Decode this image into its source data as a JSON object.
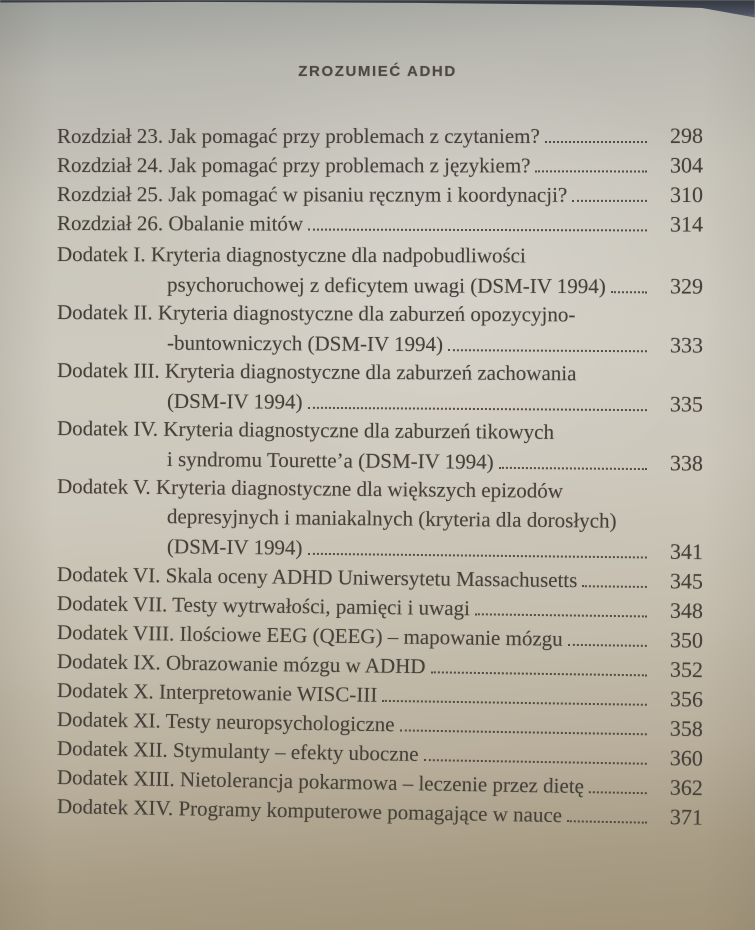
{
  "page": {
    "running_header": "ZROZUMIEĆ ADHD"
  },
  "toc": {
    "entries": [
      {
        "lines": [
          "Rozdział 23. Jak pomagać przy problemach z czytaniem?"
        ],
        "page": "298"
      },
      {
        "lines": [
          "Rozdział 24. Jak pomagać przy problemach z językiem?"
        ],
        "page": "304"
      },
      {
        "lines": [
          "Rozdział 25. Jak pomagać w pisaniu ręcznym i koordynacji?"
        ],
        "page": "310"
      },
      {
        "lines": [
          "Rozdział 26. Obalanie mitów"
        ],
        "page": "314"
      },
      {
        "lines": [
          "Dodatek I. Kryteria diagnostyczne dla nadpobudliwości",
          "psychoruchowej z deficytem uwagi (DSM-IV 1994)"
        ],
        "page": "329"
      },
      {
        "lines": [
          "Dodatek II. Kryteria diagnostyczne dla zaburzeń opozycyjno-",
          "-buntowniczych (DSM-IV 1994)"
        ],
        "page": "333"
      },
      {
        "lines": [
          "Dodatek III. Kryteria diagnostyczne dla zaburzeń zachowania",
          "(DSM-IV 1994)"
        ],
        "page": "335"
      },
      {
        "lines": [
          "Dodatek IV. Kryteria diagnostyczne dla zaburzeń tikowych",
          "i syndromu Tourette’a (DSM-IV 1994)"
        ],
        "page": "338"
      },
      {
        "lines": [
          "Dodatek V. Kryteria diagnostyczne dla większych epizodów",
          "depresyjnych i maniakalnych (kryteria dla dorosłych)",
          "(DSM-IV 1994)"
        ],
        "page": "341"
      },
      {
        "lines": [
          "Dodatek VI. Skala oceny ADHD Uniwersytetu Massachusetts"
        ],
        "page": "345"
      },
      {
        "lines": [
          "Dodatek VII. Testy wytrwałości, pamięci i uwagi"
        ],
        "page": "348"
      },
      {
        "lines": [
          "Dodatek VIII. Ilościowe EEG (QEEG) – mapowanie mózgu"
        ],
        "page": "350"
      },
      {
        "lines": [
          "Dodatek IX. Obrazowanie mózgu w ADHD"
        ],
        "page": "352"
      },
      {
        "lines": [
          "Dodatek X. Interpretowanie WISC-III"
        ],
        "page": "356"
      },
      {
        "lines": [
          "Dodatek XI. Testy neuropsychologiczne"
        ],
        "page": "358"
      },
      {
        "lines": [
          "Dodatek XII. Stymulanty – efekty uboczne"
        ],
        "page": "360"
      },
      {
        "lines": [
          "Dodatek XIII. Nietolerancja pokarmowa – leczenie przez dietę"
        ],
        "page": "362"
      },
      {
        "lines": [
          "Dodatek XIV. Programy komputerowe pomagające w nauce"
        ],
        "page": "371"
      }
    ]
  },
  "colors": {
    "paper_center": "#cecabf",
    "paper_top": "#9da09c",
    "paper_bottom": "#a0937a",
    "ink": "#46403a",
    "book_edge_dark": "#3a3d46"
  }
}
